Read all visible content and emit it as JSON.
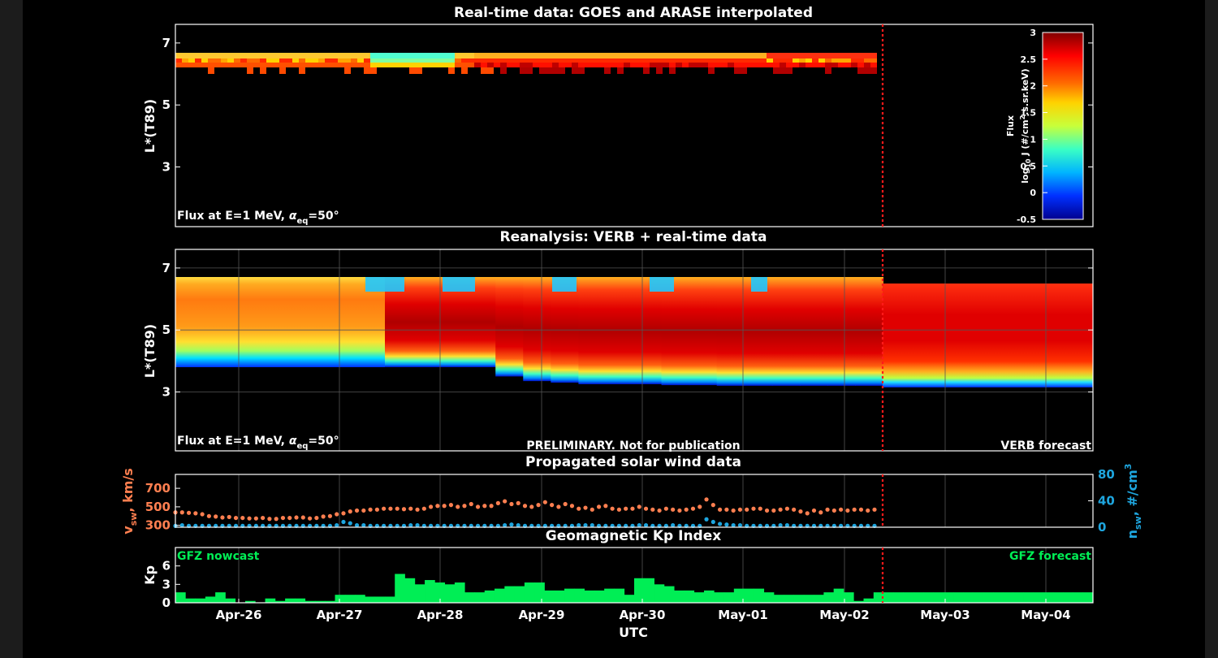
{
  "panels": {
    "realtime": {
      "title": "Real-time data: GOES and ARASE interpolated",
      "ylabel": "L*(T89)",
      "note": "Flux at E=1 MeV, ",
      "note_alpha": "α",
      "note_sub": "eq",
      "note_tail": "=50°",
      "yticks": [
        "7",
        "5",
        "3"
      ]
    },
    "reanalysis": {
      "title": "Reanalysis: VERB + real-time data",
      "ylabel": "L*(T89)",
      "note": "Flux at E=1 MeV, ",
      "note_alpha": "α",
      "note_sub": "eq",
      "note_tail": "=50°",
      "yticks": [
        "7",
        "5",
        "3"
      ],
      "preliminary": "PRELIMINARY. Not for publication",
      "forecast_label": "VERB forecast"
    },
    "solarwind": {
      "title": "Propagated solar wind data",
      "left_label": "v",
      "left_sub": "sw",
      "left_tail": ", km/s",
      "right_label": "n",
      "right_sub": "sw",
      "right_tail": ", #/cm",
      "right_sup": "3",
      "left_ticks": [
        "700",
        "500",
        "300"
      ],
      "right_ticks": [
        "80",
        "40",
        "0"
      ]
    },
    "kp": {
      "title": "Geomagnetic Kp Index",
      "ylabel": "Kp",
      "yticks": [
        "6",
        "3",
        "0"
      ],
      "nowcast_label": "GFZ nowcast",
      "forecast_label": "GFZ forecast"
    }
  },
  "colorbar": {
    "title": "Flux",
    "label": "log",
    "label_sub": "10",
    "label_mid": " J (#/cm",
    "label_sup": "2",
    "label_tail": ".s.sr.keV)",
    "ticks": [
      "3",
      "2.5",
      "2",
      "1.5",
      "1",
      "0.5",
      "0",
      "-0.5"
    ]
  },
  "xaxis": {
    "label": "UTC",
    "ticks": [
      "Apr-26",
      "Apr-27",
      "Apr-28",
      "Apr-29",
      "Apr-30",
      "May-01",
      "May-02",
      "May-03",
      "May-04"
    ]
  },
  "colors": {
    "speed": "#ff7f50",
    "density": "#1ea6df",
    "kp": "#00ee55",
    "now_line": "#ff1a1a",
    "grid": "#555555"
  },
  "chart_data": [
    {
      "type": "heatmap",
      "title": "Real-time data: GOES and ARASE interpolated",
      "ylabel": "L*(T89)",
      "ylim": [
        1.1,
        7.6
      ],
      "xlim": [
        "Apr-25 12:00",
        "May-04 12:00"
      ],
      "colorbar_range": [
        -0.5,
        3
      ],
      "data_end": "May-02 09:00",
      "note": "log10 flux ~1.3-3 in L* 6.1-6.6 band, data until May-02 09:00"
    },
    {
      "type": "heatmap",
      "title": "Reanalysis: VERB + real-time data",
      "ylabel": "L*(T89)",
      "ylim": [
        1.1,
        7.6
      ],
      "colorbar_range": [
        -0.5,
        3
      ],
      "inner_edge_L": [
        3.8,
        3.8,
        3.8,
        3.8,
        3.5,
        3.35,
        3.3,
        3.25,
        3.25,
        3.25,
        3.22,
        3.22,
        3.2,
        3.2,
        3.2,
        3.2,
        3.2,
        3.2,
        3.2
      ]
    },
    {
      "type": "scatter",
      "title": "Propagated solar wind data",
      "series": [
        {
          "name": "v_sw",
          "unit": "km/s",
          "ylim": [
            280,
            850
          ],
          "values": [
            440,
            440,
            435,
            430,
            420,
            400,
            395,
            385,
            390,
            380,
            380,
            375,
            375,
            380,
            370,
            370,
            380,
            380,
            385,
            385,
            375,
            380,
            395,
            400,
            420,
            430,
            450,
            460,
            460,
            470,
            470,
            480,
            480,
            480,
            475,
            480,
            470,
            480,
            500,
            510,
            510,
            520,
            500,
            510,
            530,
            500,
            510,
            510,
            540,
            560,
            530,
            540,
            510,
            500,
            520,
            550,
            520,
            500,
            530,
            510,
            480,
            490,
            470,
            500,
            510,
            480,
            470,
            480,
            480,
            500,
            480,
            470,
            460,
            480,
            470,
            460,
            470,
            480,
            500,
            580,
            520,
            470,
            470,
            460,
            470,
            470,
            480,
            480,
            460,
            460,
            470,
            480,
            470,
            450,
            430,
            460,
            440,
            470,
            460,
            470,
            460,
            470,
            470,
            460,
            470
          ]
        },
        {
          "name": "n_sw",
          "unit": "#/cm^3",
          "ylim": [
            0,
            80
          ],
          "values": [
            2,
            3,
            2,
            2,
            2,
            2,
            2,
            2,
            2,
            2,
            2,
            2,
            2,
            2,
            2,
            2,
            2,
            2,
            2,
            2,
            2,
            2,
            2,
            2,
            3,
            8,
            6,
            3,
            3,
            2,
            2,
            2,
            2,
            2,
            2,
            3,
            3,
            2,
            2,
            2,
            2,
            2,
            2,
            2,
            2,
            2,
            2,
            2,
            2,
            3,
            4,
            3,
            2,
            2,
            2,
            2,
            2,
            2,
            2,
            2,
            3,
            3,
            3,
            2,
            2,
            2,
            2,
            2,
            2,
            3,
            3,
            2,
            2,
            2,
            3,
            2,
            2,
            2,
            2,
            12,
            8,
            5,
            4,
            3,
            3,
            2,
            2,
            2,
            2,
            2,
            3,
            3,
            2,
            2,
            2,
            2,
            2,
            2,
            2,
            2,
            2,
            2,
            2,
            2,
            2
          ]
        }
      ],
      "xlim": [
        "Apr-25 12:00",
        "May-02 09:00"
      ]
    },
    {
      "type": "bar",
      "title": "Geomagnetic Kp Index",
      "ylabel": "Kp",
      "ylim": [
        0,
        9
      ],
      "step_hours": 3,
      "values": [
        1.7,
        0.7,
        0.7,
        1.0,
        1.7,
        0.7,
        0.0,
        0.3,
        0.0,
        0.7,
        0.3,
        0.7,
        0.7,
        0.3,
        0.3,
        0.3,
        1.3,
        1.3,
        1.3,
        1.0,
        1.0,
        1.0,
        4.7,
        4.0,
        3.0,
        3.7,
        3.3,
        3.0,
        3.3,
        1.7,
        1.7,
        2.0,
        2.3,
        2.7,
        2.7,
        3.3,
        3.3,
        2.0,
        2.0,
        2.3,
        2.3,
        2.0,
        2.0,
        2.3,
        2.3,
        1.3,
        4.0,
        4.0,
        3.0,
        2.7,
        2.0,
        2.0,
        1.7,
        2.0,
        1.7,
        1.7,
        2.3,
        2.3,
        2.3,
        1.7,
        1.3,
        1.3,
        1.3,
        1.3,
        1.3,
        1.7,
        2.3,
        1.7,
        0.3,
        0.7,
        1.7,
        1.7,
        1.7,
        1.7,
        1.7,
        1.7,
        1.7,
        1.7,
        1.7,
        1.7,
        1.7,
        1.7,
        1.7,
        1.7,
        1.7,
        1.7,
        1.7,
        1.7,
        1.7,
        1.7,
        1.7,
        1.7
      ],
      "nowcast_end": "May-02 09:00"
    }
  ]
}
